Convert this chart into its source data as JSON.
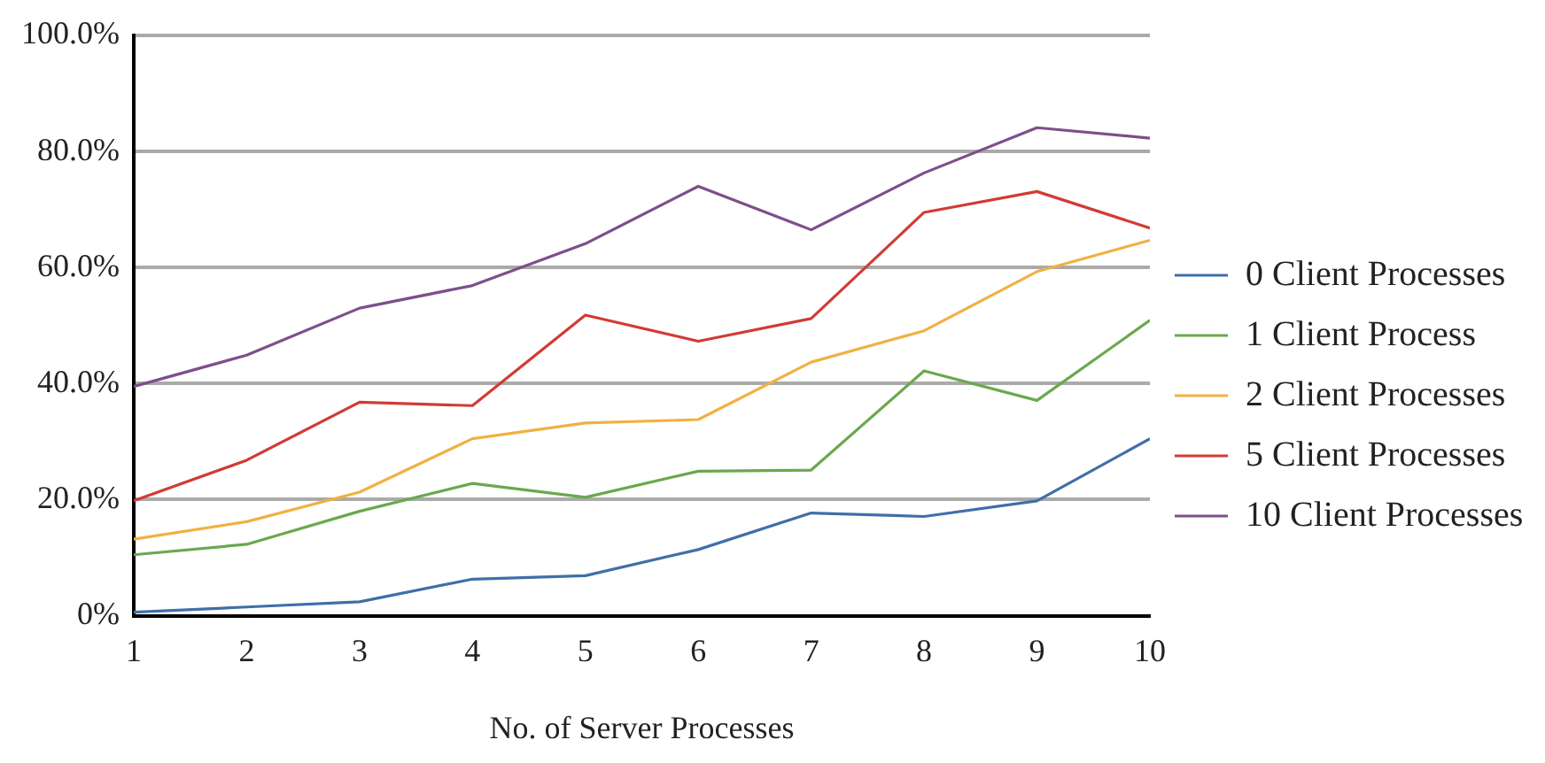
{
  "chart_data": {
    "type": "line",
    "xlabel": "No. of Server Processes",
    "x": [
      1,
      2,
      3,
      4,
      5,
      6,
      7,
      8,
      9,
      10
    ],
    "xlim": [
      1,
      10
    ],
    "xticks": [
      1,
      2,
      3,
      4,
      5,
      6,
      7,
      8,
      9,
      10
    ],
    "ylim": [
      0,
      100
    ],
    "yticks": [
      {
        "value": 0,
        "label": "0%"
      },
      {
        "value": 20,
        "label": "20.0%"
      },
      {
        "value": 40,
        "label": "40.0%"
      },
      {
        "value": 60,
        "label": "60.0%"
      },
      {
        "value": 80,
        "label": "80.0%"
      },
      {
        "value": 100,
        "label": "100.0%"
      }
    ],
    "grid": "y",
    "legend": "right",
    "marker": "none",
    "series": [
      {
        "name": "0 Client Processes",
        "color": "#3f6fa8",
        "values": [
          0.6,
          1.5,
          2.4,
          6.3,
          6.9,
          11.4,
          17.7,
          17.1,
          19.8,
          30.5
        ]
      },
      {
        "name": "1 Client Process",
        "color": "#6aa84f",
        "values": [
          10.5,
          12.3,
          18.0,
          22.8,
          20.4,
          24.9,
          25.1,
          42.2,
          37.1,
          50.9
        ]
      },
      {
        "name": "2 Client Processes",
        "color": "#f0b143",
        "values": [
          13.2,
          16.2,
          21.3,
          30.5,
          33.2,
          33.8,
          43.7,
          49.1,
          59.3,
          64.7
        ]
      },
      {
        "name": "5 Client Processes",
        "color": "#d13b34",
        "values": [
          19.8,
          26.8,
          36.8,
          36.2,
          51.8,
          47.3,
          51.2,
          69.5,
          73.1,
          66.8
        ]
      },
      {
        "name": "10 Client Processes",
        "color": "#7d4f8c",
        "values": [
          39.5,
          44.9,
          53.0,
          56.9,
          64.1,
          74.0,
          66.5,
          76.3,
          84.1,
          82.3
        ]
      }
    ]
  }
}
